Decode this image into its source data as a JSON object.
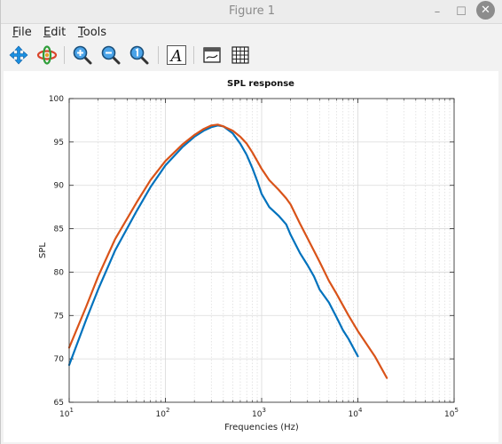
{
  "window": {
    "title": "Figure 1",
    "minimize_glyph": "–",
    "maximize_glyph": "☐",
    "close_glyph": "✕"
  },
  "menu": {
    "file": {
      "first": "F",
      "rest": "ile"
    },
    "edit": {
      "first": "E",
      "rest": "dit"
    },
    "tools": {
      "first": "T",
      "rest": "ools"
    }
  },
  "toolbar": {
    "icons": [
      "pan-icon",
      "rotate-icon",
      "zoom-in-icon",
      "zoom-out-icon",
      "zoom-reset-icon",
      "text-icon",
      "legend-icon",
      "grid-icon"
    ],
    "text_glyph": "A"
  },
  "colors": {
    "series_1": "#0072bd",
    "series_2": "#d95319",
    "grid": "#d9d9d9"
  },
  "chart_data": {
    "type": "line",
    "title": "SPL response",
    "xlabel": "Frequencies (Hz)",
    "ylabel": "SPL",
    "xscale": "log",
    "xlim": [
      10,
      100000
    ],
    "ylim": [
      65,
      100
    ],
    "xticks": [
      {
        "value": 10,
        "base": "10",
        "exp": "1"
      },
      {
        "value": 100,
        "base": "10",
        "exp": "2"
      },
      {
        "value": 1000,
        "base": "10",
        "exp": "3"
      },
      {
        "value": 10000,
        "base": "10",
        "exp": "4"
      },
      {
        "value": 100000,
        "base": "10",
        "exp": "5"
      }
    ],
    "yticks": [
      65,
      70,
      75,
      80,
      85,
      90,
      95,
      100
    ],
    "grid": true,
    "series": [
      {
        "color": "#0072bd",
        "x": [
          10,
          15,
          20,
          30,
          50,
          70,
          100,
          150,
          200,
          250,
          300,
          350,
          400,
          500,
          600,
          700,
          800,
          900,
          1000,
          1200,
          1500,
          1800,
          2000,
          2500,
          3000,
          3500,
          4000,
          5000,
          6000,
          7000,
          8000,
          10000
        ],
        "y": [
          69.3,
          74.5,
          78.0,
          82.5,
          87.0,
          89.8,
          92.3,
          94.4,
          95.6,
          96.3,
          96.7,
          96.9,
          96.8,
          96.0,
          94.8,
          93.5,
          92.0,
          90.5,
          89.0,
          87.5,
          86.5,
          85.5,
          84.3,
          82.2,
          80.8,
          79.5,
          78.0,
          76.5,
          74.8,
          73.3,
          72.3,
          70.3
        ]
      },
      {
        "color": "#d95319",
        "x": [
          10,
          15,
          20,
          30,
          50,
          70,
          100,
          150,
          200,
          250,
          300,
          350,
          400,
          500,
          600,
          700,
          800,
          900,
          1000,
          1200,
          1500,
          1800,
          2000,
          2500,
          3000,
          4000,
          5000,
          6000,
          8000,
          10000,
          15000,
          20000
        ],
        "y": [
          71.3,
          76.0,
          79.5,
          83.8,
          88.0,
          90.6,
          92.8,
          94.7,
          95.8,
          96.5,
          96.9,
          97.0,
          96.8,
          96.3,
          95.6,
          94.8,
          93.8,
          92.8,
          91.9,
          90.6,
          89.5,
          88.5,
          87.8,
          85.6,
          83.9,
          81.2,
          79.0,
          77.5,
          75.0,
          73.2,
          70.3,
          67.8
        ]
      }
    ]
  }
}
